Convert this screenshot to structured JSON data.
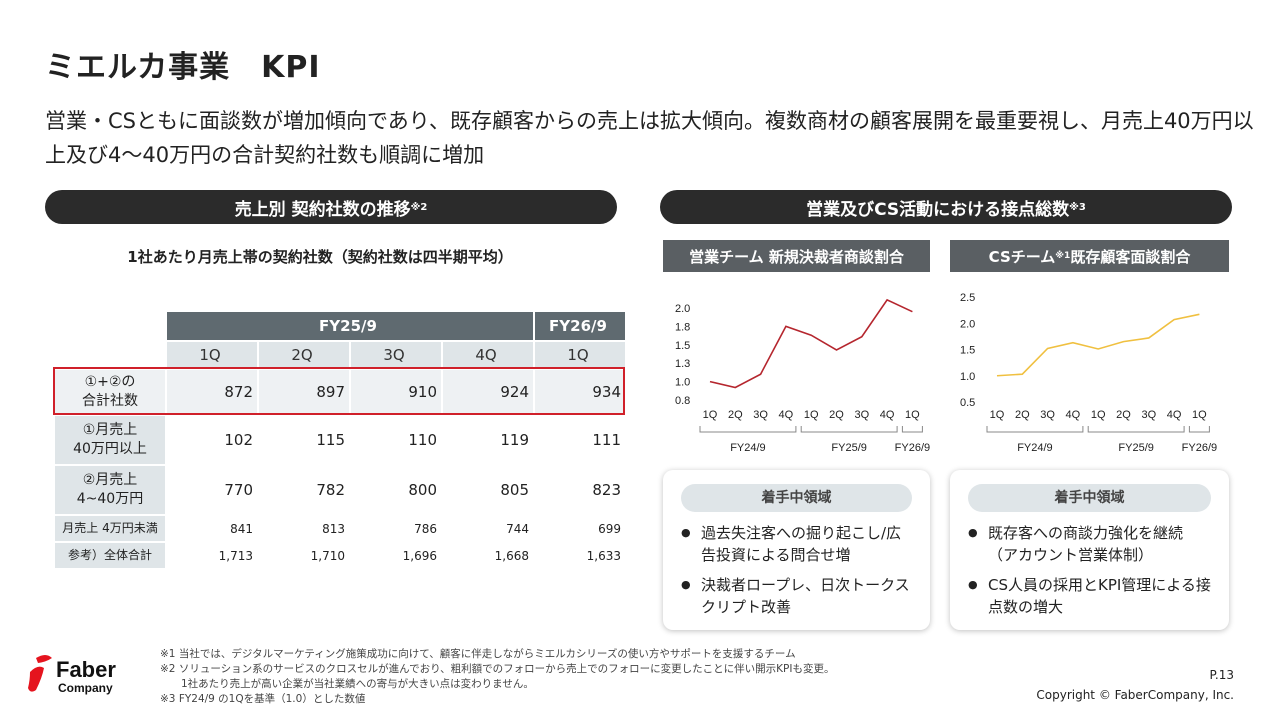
{
  "title": "ミエルカ事業　KPI",
  "lead": "営業・CSともに面談数が増加傾向であり、既存顧客からの売上は拡大傾向。複数商材の顧客展開を最重要視し、月売上40万円以上及び4～40万円の合計契約社数も順調に増加",
  "left": {
    "pill": "売上別 契約社数の推移",
    "pill_note": "※2",
    "caption": "1社あたり月売上帯の契約社数（契約社数は四半期平均）",
    "fy_headers": [
      "FY25/9",
      "FY26/9"
    ],
    "quarters": [
      "1Q",
      "2Q",
      "3Q",
      "4Q",
      "1Q"
    ],
    "rows": [
      {
        "label": [
          "①+②の",
          "合計社数"
        ],
        "values": [
          "872",
          "897",
          "910",
          "924",
          "934"
        ],
        "highlighted": true
      },
      {
        "label": [
          "①月売上",
          "40万円以上"
        ],
        "values": [
          "102",
          "115",
          "110",
          "119",
          "111"
        ]
      },
      {
        "label": [
          "②月売上",
          "4~40万円"
        ],
        "values": [
          "770",
          "782",
          "800",
          "805",
          "823"
        ]
      },
      {
        "label": [
          "月売上 4万円未満"
        ],
        "values": [
          "841",
          "813",
          "786",
          "744",
          "699"
        ]
      },
      {
        "label": [
          "参考）全体合計"
        ],
        "values": [
          "1,713",
          "1,710",
          "1,696",
          "1,668",
          "1,633"
        ]
      }
    ]
  },
  "right": {
    "pill": "営業及びCS活動における接点総数",
    "pill_note": "※3",
    "sales_header": "営業チーム 新規決裁者商談割合",
    "cs_header": "CSチーム",
    "cs_note": "※1",
    "cs_header2": " 既存顧客面談割合",
    "sales_card": {
      "title": "着手中領域",
      "items": [
        "過去失注客への掘り起こし/広告投資による問合せ増",
        "決裁者ロープレ、日次トークスクリプト改善"
      ]
    },
    "cs_card": {
      "title": "着手中領域",
      "items": [
        "既存客への商談力強化を継続（アカウント営業体制）",
        "CS人員の採用とKPI管理による接点数の増大"
      ]
    }
  },
  "chart_data": [
    {
      "type": "line",
      "categories": [
        "1Q",
        "2Q",
        "3Q",
        "4Q",
        "1Q",
        "2Q",
        "3Q",
        "4Q",
        "1Q"
      ],
      "groups": [
        "FY24/9",
        "FY25/9",
        "FY26/9"
      ],
      "values": [
        1.0,
        0.92,
        1.1,
        1.75,
        1.63,
        1.43,
        1.61,
        2.11,
        1.95
      ],
      "ylim": [
        0.75,
        2.0
      ],
      "yticks": [
        "0.8",
        "1.0",
        "1.3",
        "1.5",
        "1.8",
        "2.0"
      ],
      "color": "#b5262e",
      "grid": false
    },
    {
      "type": "line",
      "categories": [
        "1Q",
        "2Q",
        "3Q",
        "4Q",
        "1Q",
        "2Q",
        "3Q",
        "4Q",
        "1Q"
      ],
      "groups": [
        "FY24/9",
        "FY25/9",
        "FY26/9"
      ],
      "values": [
        1.0,
        1.03,
        1.52,
        1.63,
        1.51,
        1.65,
        1.72,
        2.07,
        2.17
      ],
      "ylim": [
        0.5,
        2.5
      ],
      "yticks": [
        "0.5",
        "1.0",
        "1.5",
        "2.0",
        "2.5"
      ],
      "color": "#f0c040",
      "grid": false
    }
  ],
  "footnotes": [
    "※1 当社では、デジタルマーケティング施策成功に向けて、顧客に伴走しながらミエルカシリーズの使い方やサポートを支援するチーム",
    "※2 ソリューション系のサービスのクロスセルが進んでおり、粗利額でのフォローから売上でのフォローに変更したことに伴い開示KPIも変更。",
    "　　1社あたり売上が高い企業が当社業績への寄与が大きい点は変わりません。",
    "※3 FY24/9 の1Qを基準（1.0）とした数値"
  ],
  "logo": {
    "text1": "Faber",
    "text2": "Company"
  },
  "page": "P.13",
  "copyright": "Copyright © FaberCompany, Inc."
}
